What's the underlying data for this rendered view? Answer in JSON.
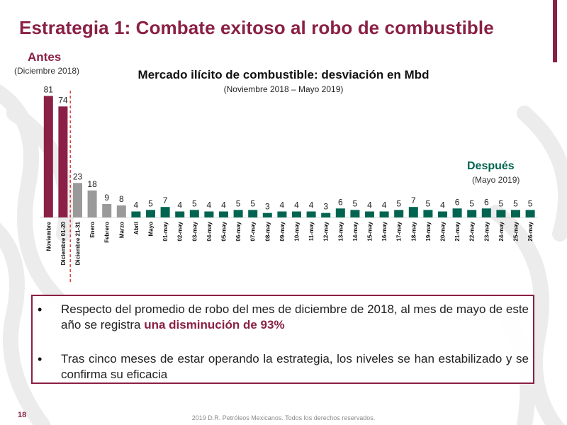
{
  "slide": {
    "title": "Estrategia 1: Combate exitoso al robo de combustible",
    "antes_label": "Antes",
    "antes_sub": "(Diciembre 2018)",
    "despues_label": "Después",
    "despues_sub": "(Mayo 2019)",
    "page_number": "18",
    "footer": "2019 D.R. Petróleos Mexicanos. Todos los derechos reservados."
  },
  "bullets": [
    {
      "text_before": "Respecto del promedio de robo del mes de diciembre de 2018, al mes de mayo de este año se registra ",
      "highlight": "una disminución de 93%",
      "text_after": ""
    },
    {
      "text_before": "Tras cinco meses de estar operando la estrategia, los niveles se han estabilizado y se confirma su eficacia",
      "highlight": "",
      "text_after": ""
    }
  ],
  "colors": {
    "antes": "#8a2045",
    "transition": "#9a9a9a",
    "despues": "#006450",
    "cutoff_line": "#e0342f"
  },
  "chart_data": {
    "type": "bar",
    "title": "Mercado ilícito de combustible: desviación en Mbd",
    "subtitle": "(Noviembre 2018 – Mayo 2019)",
    "xlabel": "",
    "ylabel": "",
    "ylim": [
      0,
      85
    ],
    "grid": false,
    "categories": [
      "Noviembre",
      "Diciembre 01-20",
      "Diciembre 21-31",
      "Enero",
      "Febrero",
      "Marzo",
      "Abril",
      "Mayo",
      "01-may",
      "02-may",
      "03-may",
      "04-may",
      "05-may",
      "06-may",
      "07-may",
      "08-may",
      "09-may",
      "10-may",
      "11-may",
      "12-may",
      "13-may",
      "14-may",
      "15-may",
      "16-may",
      "17-may",
      "18-may",
      "19-may",
      "20-may",
      "21-may",
      "22-may",
      "23-may",
      "24-may",
      "25-may",
      "26-may"
    ],
    "values": [
      81,
      74,
      23,
      18,
      9,
      8,
      4,
      5,
      7,
      4,
      5,
      4,
      4,
      5,
      5,
      3,
      4,
      4,
      4,
      3,
      6,
      5,
      4,
      4,
      5,
      7,
      5,
      4,
      6,
      5,
      6,
      5,
      5,
      5
    ],
    "groups": [
      "antes",
      "antes",
      "transition",
      "transition",
      "transition",
      "transition",
      "despues",
      "despues",
      "despues",
      "despues",
      "despues",
      "despues",
      "despues",
      "despues",
      "despues",
      "despues",
      "despues",
      "despues",
      "despues",
      "despues",
      "despues",
      "despues",
      "despues",
      "despues",
      "despues",
      "despues",
      "despues",
      "despues",
      "despues",
      "despues",
      "despues",
      "despues",
      "despues",
      "despues"
    ],
    "cutoff_after_category": "Diciembre 01-20"
  }
}
